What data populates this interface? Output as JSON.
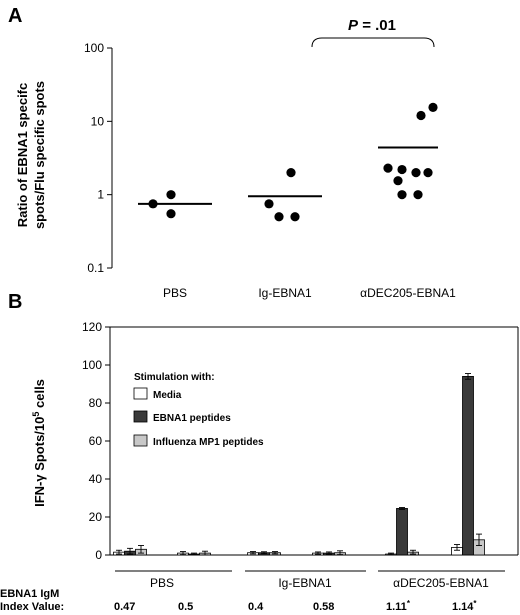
{
  "panels": {
    "a_label": "A",
    "b_label": "B"
  },
  "colors": {
    "media": "#ffffff",
    "ebna1_peptides": "#3a3a3a",
    "influenza_mp1": "#c8c8c8",
    "axis": "#000000"
  },
  "chart_data": [
    {
      "type": "scatter",
      "panel": "A",
      "ylabel_line1": "Ratio of EBNA1 specifc",
      "ylabel_line2": "spots/Flu specific spots",
      "yscale": "log",
      "ylim": [
        0.1,
        100
      ],
      "yticks": [
        "0.1",
        "1",
        "10",
        "100"
      ],
      "categories": [
        "PBS",
        "Ig-EBNA1",
        "αDEC205-EBNA1"
      ],
      "points": [
        [
          1.0,
          0.75,
          0.55
        ],
        [
          2.0,
          0.75,
          0.5,
          0.5
        ],
        [
          15.5,
          12.0,
          2.3,
          2.2,
          2.0,
          2.0,
          1.55,
          1.0,
          1.0
        ]
      ],
      "means": [
        0.75,
        0.95,
        4.4
      ],
      "annotation": {
        "text": "P = .01",
        "between": [
          "Ig-EBNA1",
          "αDEC205-EBNA1"
        ]
      }
    },
    {
      "type": "bar",
      "panel": "B",
      "ylabel": "IFN-γ Spots/10⁵ cells",
      "ylim": [
        0,
        120
      ],
      "yticks": [
        "0",
        "20",
        "40",
        "60",
        "80",
        "100",
        "120"
      ],
      "legend_title": "Stimulation with:",
      "series_names": [
        "Media",
        "EBNA1 peptides",
        "Influenza MP1 peptides"
      ],
      "groups": [
        "PBS",
        "Ig-EBNA1",
        "αDEC205-EBNA1"
      ],
      "mice": [
        {
          "group": 0,
          "values": [
            1.5,
            2.0,
            3.0
          ],
          "errors": [
            1.0,
            1.5,
            2.0
          ],
          "index_value": "0.47"
        },
        {
          "group": 0,
          "values": [
            1.0,
            0.5,
            1.0
          ],
          "errors": [
            0.8,
            0.5,
            1.0
          ],
          "index_value": "0.5"
        },
        {
          "group": 1,
          "values": [
            1.2,
            1.2,
            1.2
          ],
          "errors": [
            0.6,
            0.5,
            0.6
          ],
          "index_value": "0.4"
        },
        {
          "group": 1,
          "values": [
            1.0,
            1.0,
            1.2
          ],
          "errors": [
            0.6,
            0.6,
            1.0
          ],
          "index_value": "0.58"
        },
        {
          "group": 2,
          "values": [
            0.5,
            24.5,
            1.5
          ],
          "errors": [
            0.5,
            0.5,
            1.0
          ],
          "index_value": "1.11",
          "index_mark": "*"
        },
        {
          "group": 2,
          "values": [
            4.0,
            94.0,
            8.0
          ],
          "errors": [
            1.5,
            1.5,
            3.0
          ],
          "index_value": "1.14",
          "index_mark": "*"
        }
      ],
      "index_label_line1": "EBNA1 IgM",
      "index_label_line2": "Index Value:"
    }
  ]
}
